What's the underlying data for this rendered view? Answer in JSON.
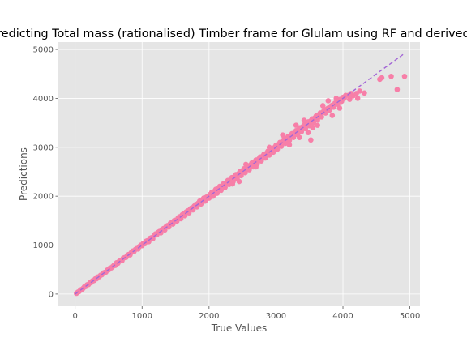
{
  "chart_data": {
    "type": "scatter",
    "title": "Predicting Total mass (rationalised) Timber  frame for Glulam using RF and derived i",
    "xlabel": "True Values",
    "ylabel": "Predictions",
    "xlim": [
      -250,
      5150
    ],
    "ylim": [
      -250,
      5150
    ],
    "xticks": [
      0,
      1000,
      2000,
      3000,
      4000,
      5000
    ],
    "yticks": [
      0,
      1000,
      2000,
      3000,
      4000,
      5000
    ],
    "grid": true,
    "style": "ggplot",
    "colors": {
      "points": "#f77fa8",
      "reference_line": "#a366d6",
      "plot_background": "#e5e5e5",
      "grid": "#ffffff"
    },
    "reference_line": {
      "from": [
        0,
        0
      ],
      "to": [
        4900,
        4900
      ],
      "style": "dashed"
    },
    "points": [
      [
        20,
        15
      ],
      [
        40,
        38
      ],
      [
        60,
        52
      ],
      [
        80,
        85
      ],
      [
        100,
        95
      ],
      [
        120,
        118
      ],
      [
        140,
        150
      ],
      [
        160,
        155
      ],
      [
        180,
        190
      ],
      [
        200,
        195
      ],
      [
        220,
        230
      ],
      [
        240,
        235
      ],
      [
        260,
        270
      ],
      [
        280,
        275
      ],
      [
        300,
        310
      ],
      [
        320,
        312
      ],
      [
        340,
        350
      ],
      [
        360,
        355
      ],
      [
        380,
        385
      ],
      [
        400,
        395
      ],
      [
        420,
        430
      ],
      [
        440,
        440
      ],
      [
        460,
        450
      ],
      [
        480,
        490
      ],
      [
        500,
        495
      ],
      [
        520,
        530
      ],
      [
        540,
        535
      ],
      [
        560,
        560
      ],
      [
        580,
        590
      ],
      [
        600,
        585
      ],
      [
        620,
        640
      ],
      [
        640,
        630
      ],
      [
        660,
        670
      ],
      [
        680,
        690
      ],
      [
        700,
        680
      ],
      [
        720,
        735
      ],
      [
        740,
        745
      ],
      [
        760,
        750
      ],
      [
        780,
        790
      ],
      [
        800,
        810
      ],
      [
        820,
        800
      ],
      [
        840,
        850
      ],
      [
        860,
        880
      ],
      [
        880,
        870
      ],
      [
        900,
        910
      ],
      [
        920,
        930
      ],
      [
        940,
        920
      ],
      [
        960,
        970
      ],
      [
        980,
        1000
      ],
      [
        1000,
        990
      ],
      [
        1020,
        1040
      ],
      [
        1040,
        1030
      ],
      [
        1060,
        1080
      ],
      [
        1080,
        1090
      ],
      [
        1100,
        1070
      ],
      [
        1120,
        1140
      ],
      [
        1140,
        1150
      ],
      [
        1160,
        1130
      ],
      [
        1180,
        1200
      ],
      [
        1200,
        1230
      ],
      [
        1220,
        1210
      ],
      [
        1240,
        1260
      ],
      [
        1260,
        1280
      ],
      [
        1280,
        1250
      ],
      [
        1300,
        1320
      ],
      [
        1320,
        1340
      ],
      [
        1340,
        1310
      ],
      [
        1360,
        1380
      ],
      [
        1380,
        1400
      ],
      [
        1400,
        1370
      ],
      [
        1420,
        1440
      ],
      [
        1440,
        1460
      ],
      [
        1460,
        1430
      ],
      [
        1480,
        1500
      ],
      [
        1500,
        1510
      ],
      [
        1520,
        1490
      ],
      [
        1540,
        1560
      ],
      [
        1560,
        1580
      ],
      [
        1580,
        1540
      ],
      [
        1600,
        1620
      ],
      [
        1620,
        1640
      ],
      [
        1640,
        1600
      ],
      [
        1660,
        1680
      ],
      [
        1680,
        1700
      ],
      [
        1700,
        1660
      ],
      [
        1720,
        1740
      ],
      [
        1740,
        1760
      ],
      [
        1760,
        1720
      ],
      [
        1780,
        1800
      ],
      [
        1800,
        1830
      ],
      [
        1820,
        1780
      ],
      [
        1840,
        1860
      ],
      [
        1860,
        1900
      ],
      [
        1880,
        1840
      ],
      [
        1900,
        1920
      ],
      [
        1920,
        1960
      ],
      [
        1940,
        1900
      ],
      [
        1960,
        1980
      ],
      [
        1980,
        2000
      ],
      [
        2000,
        1960
      ],
      [
        2020,
        2040
      ],
      [
        2040,
        2080
      ],
      [
        2060,
        2000
      ],
      [
        2080,
        2100
      ],
      [
        2100,
        2140
      ],
      [
        2120,
        2060
      ],
      [
        2140,
        2160
      ],
      [
        2160,
        2200
      ],
      [
        2180,
        2120
      ],
      [
        2200,
        2220
      ],
      [
        2220,
        2260
      ],
      [
        2240,
        2180
      ],
      [
        2260,
        2280
      ],
      [
        2280,
        2320
      ],
      [
        2300,
        2240
      ],
      [
        2320,
        2340
      ],
      [
        2340,
        2380
      ],
      [
        2360,
        2300
      ],
      [
        2380,
        2400
      ],
      [
        2400,
        2440
      ],
      [
        2420,
        2360
      ],
      [
        2440,
        2460
      ],
      [
        2460,
        2500
      ],
      [
        2480,
        2420
      ],
      [
        2500,
        2520
      ],
      [
        2520,
        2560
      ],
      [
        2540,
        2480
      ],
      [
        2560,
        2580
      ],
      [
        2580,
        2620
      ],
      [
        2600,
        2540
      ],
      [
        2620,
        2640
      ],
      [
        2640,
        2680
      ],
      [
        2660,
        2600
      ],
      [
        2680,
        2700
      ],
      [
        2700,
        2740
      ],
      [
        2720,
        2660
      ],
      [
        2740,
        2760
      ],
      [
        2760,
        2800
      ],
      [
        2780,
        2720
      ],
      [
        2800,
        2820
      ],
      [
        2820,
        2860
      ],
      [
        2840,
        2780
      ],
      [
        2860,
        2880
      ],
      [
        2880,
        2920
      ],
      [
        2900,
        2840
      ],
      [
        2920,
        2940
      ],
      [
        2940,
        2980
      ],
      [
        2960,
        2900
      ],
      [
        2980,
        3000
      ],
      [
        3000,
        3040
      ],
      [
        3020,
        2960
      ],
      [
        3040,
        3060
      ],
      [
        3060,
        3100
      ],
      [
        3080,
        3020
      ],
      [
        3100,
        3120
      ],
      [
        3120,
        3160
      ],
      [
        3140,
        3080
      ],
      [
        3160,
        3180
      ],
      [
        3180,
        3220
      ],
      [
        3200,
        3140
      ],
      [
        3220,
        3240
      ],
      [
        3240,
        3280
      ],
      [
        3260,
        3200
      ],
      [
        3280,
        3300
      ],
      [
        3300,
        3340
      ],
      [
        3320,
        3260
      ],
      [
        3340,
        3360
      ],
      [
        3360,
        3400
      ],
      [
        3380,
        3320
      ],
      [
        3400,
        3420
      ],
      [
        3420,
        3460
      ],
      [
        3440,
        3380
      ],
      [
        3460,
        3480
      ],
      [
        3480,
        3520
      ],
      [
        3500,
        3440
      ],
      [
        3520,
        3540
      ],
      [
        3540,
        3580
      ],
      [
        3560,
        3500
      ],
      [
        3580,
        3600
      ],
      [
        3600,
        3640
      ],
      [
        3620,
        3560
      ],
      [
        3640,
        3660
      ],
      [
        3660,
        3700
      ],
      [
        3680,
        3620
      ],
      [
        3700,
        3720
      ],
      [
        3720,
        3760
      ],
      [
        3740,
        3700
      ],
      [
        3760,
        3780
      ],
      [
        3780,
        3800
      ],
      [
        3800,
        3760
      ],
      [
        3820,
        3840
      ],
      [
        3840,
        3860
      ],
      [
        3860,
        3820
      ],
      [
        3880,
        3900
      ],
      [
        3900,
        3920
      ],
      [
        3920,
        3880
      ],
      [
        3940,
        3960
      ],
      [
        3960,
        3980
      ],
      [
        3980,
        3940
      ],
      [
        4000,
        4020
      ],
      [
        4020,
        4000
      ],
      [
        4040,
        4060
      ],
      [
        4080,
        4060
      ],
      [
        4120,
        4100
      ],
      [
        2050,
        2010
      ],
      [
        2350,
        2250
      ],
      [
        2450,
        2300
      ],
      [
        2550,
        2650
      ],
      [
        2700,
        2600
      ],
      [
        2900,
        3000
      ],
      [
        3100,
        3250
      ],
      [
        3200,
        3050
      ],
      [
        3300,
        3450
      ],
      [
        3350,
        3200
      ],
      [
        3420,
        3550
      ],
      [
        3480,
        3300
      ],
      [
        3520,
        3150
      ],
      [
        3550,
        3400
      ],
      [
        3620,
        3450
      ],
      [
        3700,
        3850
      ],
      [
        3780,
        3950
      ],
      [
        3840,
        3650
      ],
      [
        3900,
        4000
      ],
      [
        3950,
        3800
      ],
      [
        4100,
        3980
      ],
      [
        4150,
        4050
      ],
      [
        4200,
        4100
      ],
      [
        4220,
        4000
      ],
      [
        4250,
        4150
      ],
      [
        4320,
        4110
      ],
      [
        4550,
        4390
      ],
      [
        4580,
        4420
      ],
      [
        4720,
        4450
      ],
      [
        4810,
        4180
      ],
      [
        4920,
        4450
      ]
    ]
  }
}
